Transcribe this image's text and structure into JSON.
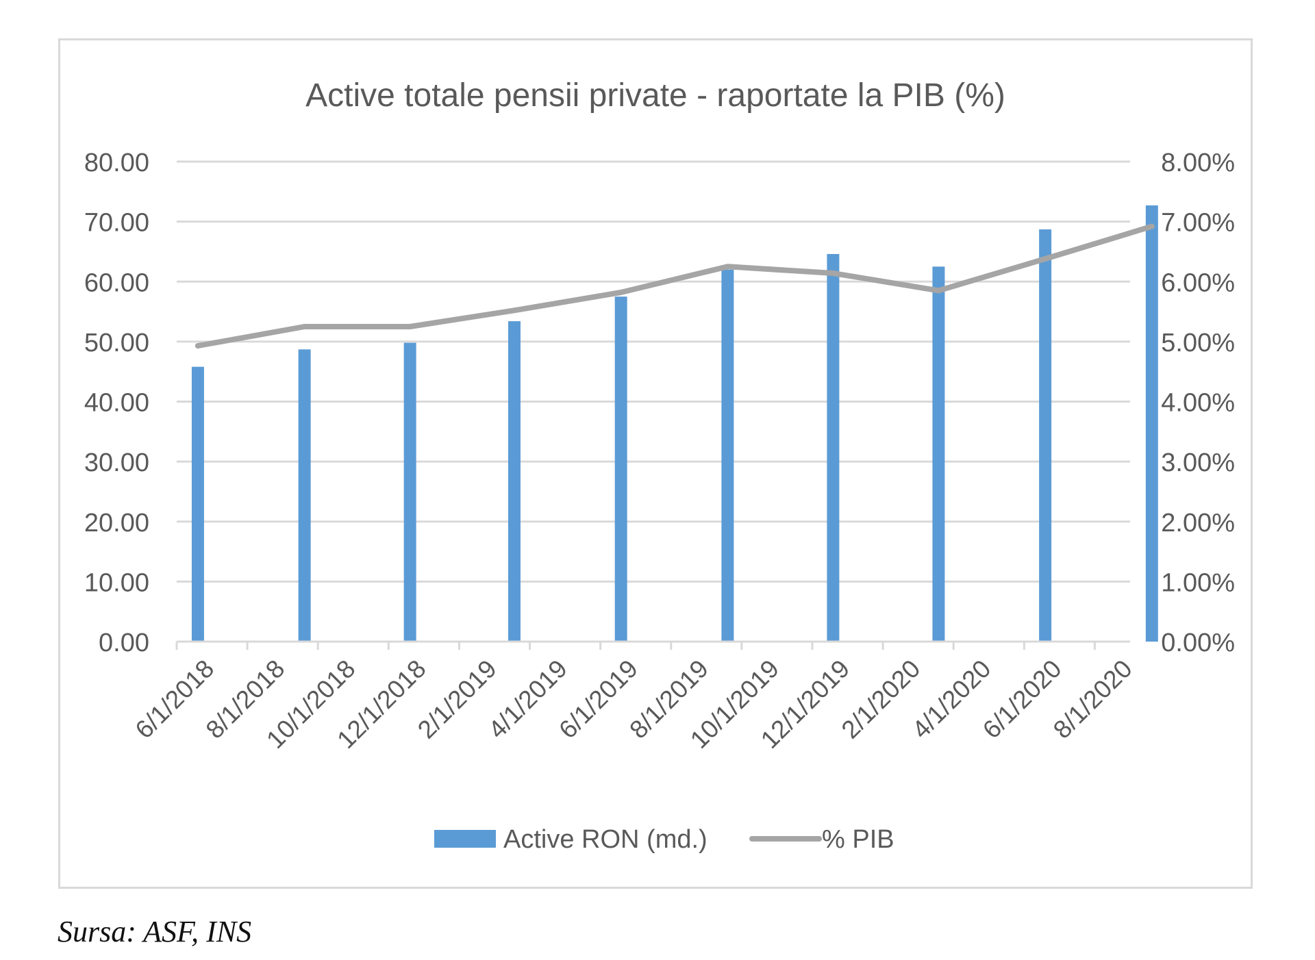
{
  "source_note": "Sursa: ASF, INS",
  "chart_data": {
    "type": "bar",
    "title": "Active totale pensii private - raportate la PIB (%)",
    "categories": [
      "6/1/2018",
      "8/1/2018",
      "10/1/2018",
      "12/1/2018",
      "2/1/2019",
      "4/1/2019",
      "6/1/2019",
      "8/1/2019",
      "10/1/2019",
      "12/1/2019",
      "2/1/2020",
      "4/1/2020",
      "6/1/2020",
      "8/1/2020"
    ],
    "y_left": {
      "ylim": [
        0,
        80
      ],
      "ticks": [
        "0.00",
        "10.00",
        "20.00",
        "30.00",
        "40.00",
        "50.00",
        "60.00",
        "70.00",
        "80.00"
      ]
    },
    "y_right": {
      "ylim": [
        0,
        8
      ],
      "ticks": [
        "0.00%",
        "1.00%",
        "2.00%",
        "3.00%",
        "4.00%",
        "5.00%",
        "6.00%",
        "7.00%",
        "8.00%"
      ]
    },
    "series": [
      {
        "name": "Active RON (md.)",
        "type": "bar",
        "axis": "left",
        "color": "#5b9bd5",
        "x": [
          "6/1/2018",
          "9/1/2018",
          "12/1/2018",
          "3/1/2019",
          "6/1/2019",
          "9/1/2019",
          "12/1/2019",
          "3/1/2020",
          "6/1/2020",
          "9/1/2020"
        ],
        "values": [
          45.8,
          48.7,
          49.8,
          53.4,
          57.5,
          62.0,
          64.6,
          62.5,
          68.7,
          72.7
        ]
      },
      {
        "name": "% PIB",
        "type": "line",
        "axis": "right",
        "color": "#a5a5a5",
        "x": [
          "6/1/2018",
          "9/1/2018",
          "12/1/2018",
          "3/1/2019",
          "6/1/2019",
          "9/1/2019",
          "12/1/2019",
          "3/1/2020",
          "6/1/2020",
          "9/1/2020"
        ],
        "values": [
          4.93,
          5.25,
          5.25,
          5.52,
          5.82,
          6.25,
          6.14,
          5.85,
          6.38,
          6.92
        ]
      }
    ],
    "grid": true,
    "legend": "bottom"
  }
}
